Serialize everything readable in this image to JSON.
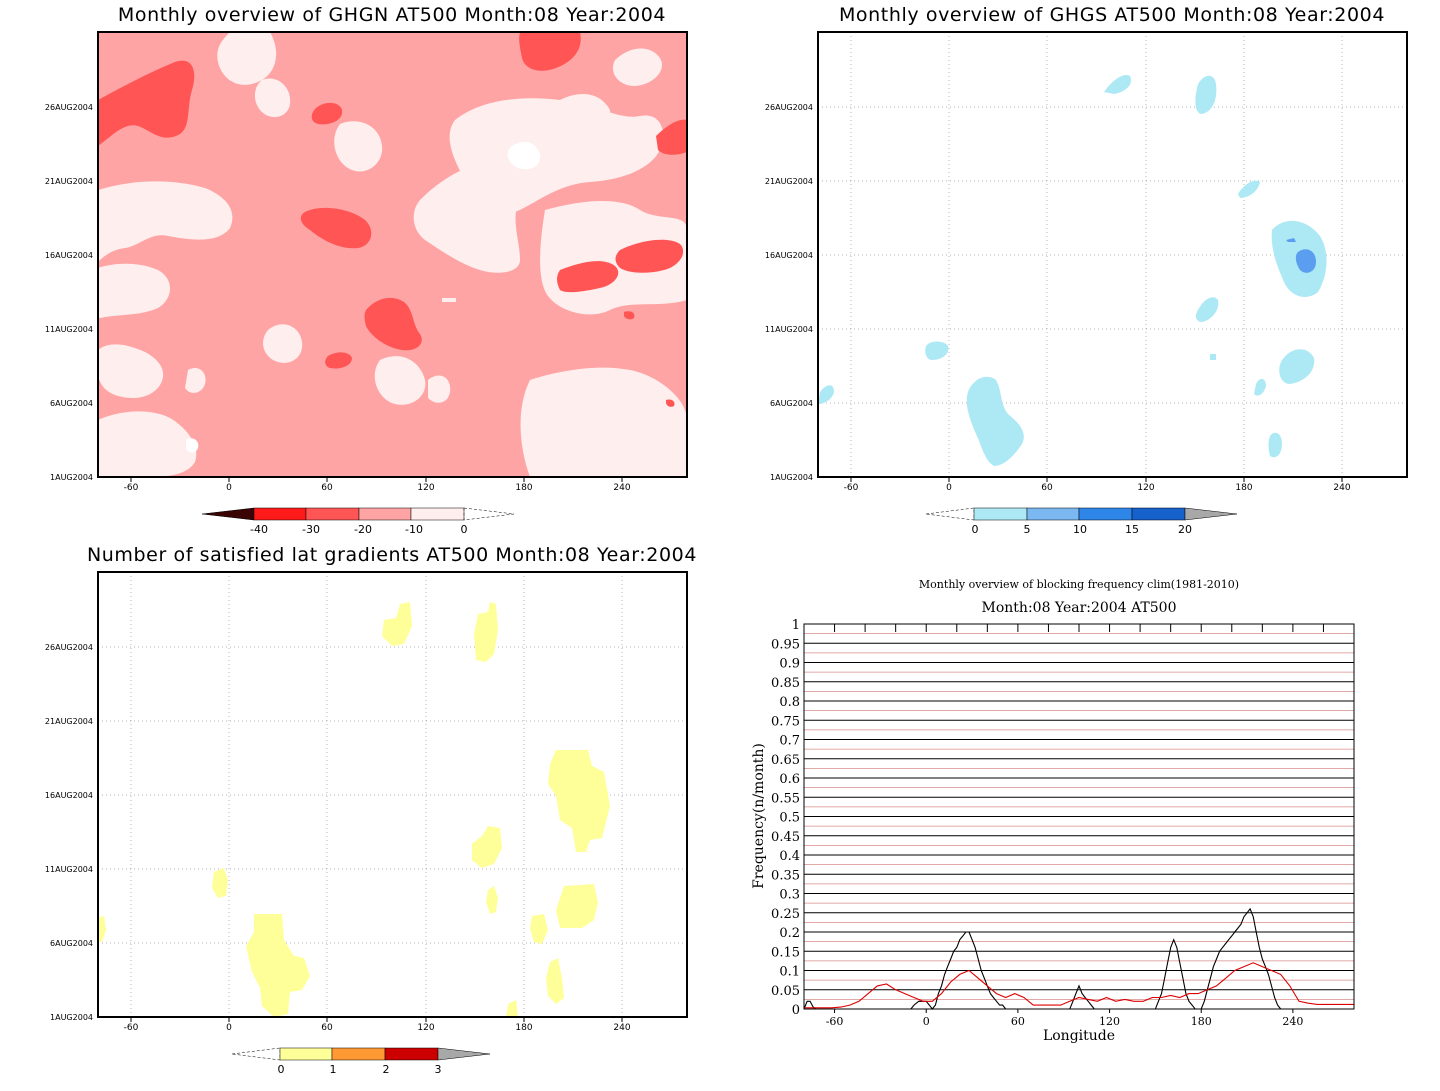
{
  "panels": {
    "ghgn": {
      "title": "Monthly overview of GHGN AT500 Month:08 Year:2004",
      "x_ticks": [
        "-60",
        "0",
        "60",
        "120",
        "180",
        "240"
      ],
      "y_ticks": [
        "1AUG2004",
        "6AUG2004",
        "11AUG2004",
        "16AUG2004",
        "21AUG2004",
        "26AUG2004"
      ],
      "colorbar_labels": [
        "-40",
        "-30",
        "-20",
        "-10",
        "0"
      ],
      "colors": [
        "#3a0404",
        "#ff1a1a",
        "#ff5555",
        "#ffa4a4",
        "#ffeeee"
      ]
    },
    "ghgs": {
      "title": "Monthly overview of GHGS AT500 Month:08 Year:2004",
      "x_ticks": [
        "-60",
        "0",
        "60",
        "120",
        "180",
        "240"
      ],
      "y_ticks": [
        "1AUG2004",
        "6AUG2004",
        "11AUG2004",
        "16AUG2004",
        "21AUG2004",
        "26AUG2004"
      ],
      "colorbar_labels": [
        "0",
        "5",
        "10",
        "15",
        "20"
      ],
      "colors": [
        "#ade9f5",
        "#7bb7f0",
        "#2e86e8",
        "#1661cc",
        "#a8a8a8"
      ]
    },
    "gradients": {
      "title": "Number of satisfied lat gradients AT500 Month:08 Year:2004",
      "x_ticks": [
        "-60",
        "0",
        "60",
        "120",
        "180",
        "240"
      ],
      "y_ticks": [
        "1AUG2004",
        "6AUG2004",
        "11AUG2004",
        "16AUG2004",
        "21AUG2004",
        "26AUG2004"
      ],
      "colorbar_labels": [
        "0",
        "1",
        "2",
        "3"
      ],
      "colors": [
        "#ffff99",
        "#ff9933",
        "#cc0000",
        "#a8a8a8"
      ]
    },
    "frequency": {
      "title_top": "Monthly overview of blocking frequency clim(1981-2010)",
      "title_sub": "Month:08 Year:2004  AT500"
    }
  },
  "chart_data": [
    {
      "type": "heatmap",
      "title": "Monthly overview of GHGN AT500 Month:08 Year:2004",
      "xlabel": "",
      "ylabel": "",
      "xlim": [
        -80,
        280
      ],
      "ylim": [
        "1AUG2004",
        "31AUG2004"
      ],
      "x_ticks": [
        -60,
        0,
        60,
        120,
        180,
        240
      ],
      "y_ticks": [
        "1AUG2004",
        "6AUG2004",
        "11AUG2004",
        "16AUG2004",
        "21AUG2004",
        "26AUG2004"
      ],
      "levels": [
        -40,
        -30,
        -20,
        -10,
        0
      ]
    },
    {
      "type": "heatmap",
      "title": "Monthly overview of GHGS AT500 Month:08 Year:2004",
      "xlabel": "",
      "ylabel": "",
      "xlim": [
        -80,
        280
      ],
      "ylim": [
        "1AUG2004",
        "31AUG2004"
      ],
      "x_ticks": [
        -60,
        0,
        60,
        120,
        180,
        240
      ],
      "y_ticks": [
        "1AUG2004",
        "6AUG2004",
        "11AUG2004",
        "16AUG2004",
        "21AUG2004",
        "26AUG2004"
      ],
      "levels": [
        0,
        5,
        10,
        15,
        20
      ]
    },
    {
      "type": "heatmap",
      "title": "Number of satisfied lat gradients AT500 Month:08 Year:2004",
      "xlabel": "",
      "ylabel": "",
      "xlim": [
        -80,
        280
      ],
      "ylim": [
        "1AUG2004",
        "31AUG2004"
      ],
      "x_ticks": [
        -60,
        0,
        60,
        120,
        180,
        240
      ],
      "y_ticks": [
        "1AUG2004",
        "6AUG2004",
        "11AUG2004",
        "16AUG2004",
        "21AUG2004",
        "26AUG2004"
      ],
      "levels": [
        0,
        1,
        2,
        3
      ]
    },
    {
      "type": "line",
      "title": "Monthly overview of blocking frequency clim(1981-2010)",
      "subtitle": "Month:08 Year:2004  AT500",
      "xlabel": "Longitude",
      "ylabel": "Frequency(n/month)",
      "xlim": [
        -80,
        280
      ],
      "ylim": [
        0,
        1
      ],
      "x_ticks": [
        -60,
        0,
        60,
        120,
        180,
        240
      ],
      "y_ticks": [
        0,
        0.05,
        0.1,
        0.15,
        0.2,
        0.25,
        0.3,
        0.35,
        0.4,
        0.45,
        0.5,
        0.55,
        0.6,
        0.65,
        0.7,
        0.75,
        0.8,
        0.85,
        0.9,
        0.95,
        1
      ],
      "grid": true,
      "series": [
        {
          "color": "#000000",
          "x": [
            -80,
            -78,
            -76,
            -74,
            -72,
            -70,
            -10,
            -8,
            -5,
            -2,
            0,
            2,
            4,
            6,
            8,
            10,
            12,
            14,
            16,
            18,
            20,
            22,
            24,
            26,
            28,
            30,
            32,
            34,
            36,
            38,
            40,
            42,
            44,
            46,
            48,
            50,
            52,
            54,
            56,
            94,
            96,
            98,
            100,
            102,
            104,
            106,
            108,
            110,
            150,
            152,
            154,
            156,
            158,
            160,
            162,
            164,
            166,
            168,
            170,
            172,
            174,
            176,
            178,
            180,
            182,
            184,
            186,
            188,
            190,
            192,
            194,
            196,
            198,
            200,
            202,
            204,
            206,
            208,
            210,
            212,
            214,
            216,
            218,
            220,
            222,
            224,
            226,
            228,
            230,
            232,
            234,
            236,
            240
          ],
          "y": [
            0,
            0.02,
            0.02,
            0.005,
            0,
            0,
            0,
            0.01,
            0.02,
            0.02,
            0.02,
            0.01,
            0,
            0.01,
            0.04,
            0.06,
            0.09,
            0.11,
            0.13,
            0.15,
            0.16,
            0.18,
            0.19,
            0.2,
            0.2,
            0.18,
            0.16,
            0.13,
            0.1,
            0.08,
            0.06,
            0.04,
            0.03,
            0.02,
            0.01,
            0.01,
            0,
            0,
            0,
            0,
            0.02,
            0.04,
            0.06,
            0.04,
            0.03,
            0.02,
            0.01,
            0,
            0,
            0.02,
            0.04,
            0.08,
            0.12,
            0.16,
            0.18,
            0.16,
            0.12,
            0.08,
            0.04,
            0.02,
            0.01,
            0,
            0,
            0,
            0.02,
            0.05,
            0.08,
            0.11,
            0.13,
            0.15,
            0.16,
            0.17,
            0.18,
            0.19,
            0.2,
            0.21,
            0.22,
            0.24,
            0.25,
            0.26,
            0.24,
            0.2,
            0.16,
            0.13,
            0.11,
            0.09,
            0.06,
            0.03,
            0.01,
            0,
            0,
            0,
            0
          ]
        },
        {
          "color": "#dd0000",
          "x": [
            -80,
            -74,
            -68,
            -62,
            -56,
            -50,
            -44,
            -38,
            -32,
            -26,
            -20,
            -14,
            -8,
            -2,
            4,
            10,
            16,
            22,
            28,
            34,
            40,
            46,
            52,
            58,
            64,
            70,
            76,
            82,
            88,
            94,
            100,
            106,
            112,
            118,
            124,
            130,
            136,
            142,
            148,
            154,
            160,
            166,
            172,
            178,
            184,
            190,
            196,
            202,
            208,
            214,
            220,
            226,
            232,
            238,
            244,
            250,
            256,
            262,
            268,
            274,
            280
          ],
          "y": [
            0.003,
            0.003,
            0.003,
            0.003,
            0.005,
            0.01,
            0.02,
            0.04,
            0.06,
            0.065,
            0.05,
            0.04,
            0.03,
            0.02,
            0.02,
            0.04,
            0.07,
            0.09,
            0.1,
            0.08,
            0.06,
            0.04,
            0.03,
            0.04,
            0.03,
            0.01,
            0.01,
            0.01,
            0.01,
            0.02,
            0.03,
            0.025,
            0.02,
            0.03,
            0.02,
            0.025,
            0.02,
            0.02,
            0.03,
            0.03,
            0.035,
            0.03,
            0.04,
            0.04,
            0.05,
            0.06,
            0.08,
            0.1,
            0.11,
            0.12,
            0.11,
            0.1,
            0.09,
            0.06,
            0.02,
            0.015,
            0.012,
            0.012,
            0.012,
            0.012,
            0.012
          ]
        }
      ]
    }
  ]
}
